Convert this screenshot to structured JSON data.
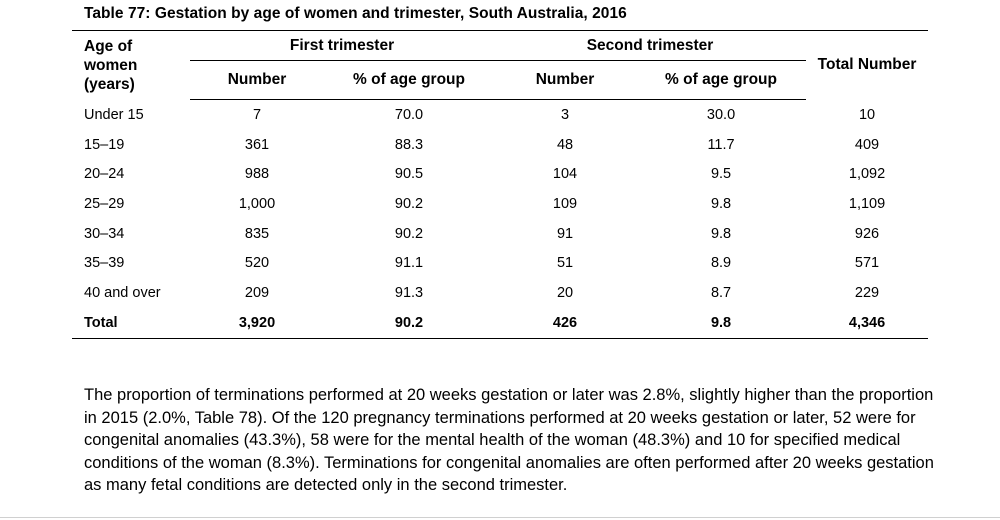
{
  "caption": "Table 77: Gestation by age of women and trimester, South Australia, 2016",
  "table": {
    "age_header": [
      "Age of",
      "women",
      "(years)"
    ],
    "first_trimester": "First trimester",
    "second_trimester": "Second trimester",
    "number_label": "Number",
    "pct_label": "% of age group",
    "total_number_label": "Total Number",
    "rows": [
      {
        "age": "Under 15",
        "n1": "7",
        "p1": "70.0",
        "n2": "3",
        "p2": "30.0",
        "total": "10"
      },
      {
        "age": "15–19",
        "n1": "361",
        "p1": "88.3",
        "n2": "48",
        "p2": "11.7",
        "total": "409"
      },
      {
        "age": "20–24",
        "n1": "988",
        "p1": "90.5",
        "n2": "104",
        "p2": "9.5",
        "total": "1,092"
      },
      {
        "age": "25–29",
        "n1": "1,000",
        "p1": "90.2",
        "n2": "109",
        "p2": "9.8",
        "total": "1,109"
      },
      {
        "age": "30–34",
        "n1": "835",
        "p1": "90.2",
        "n2": "91",
        "p2": "9.8",
        "total": "926"
      },
      {
        "age": "35–39",
        "n1": "520",
        "p1": "91.1",
        "n2": "51",
        "p2": "8.9",
        "total": "571"
      },
      {
        "age": "40 and over",
        "n1": "209",
        "p1": "91.3",
        "n2": "20",
        "p2": "8.7",
        "total": "229"
      }
    ],
    "total_row": {
      "age": "Total",
      "n1": "3,920",
      "p1": "90.2",
      "n2": "426",
      "p2": "9.8",
      "total": "4,346"
    }
  },
  "paragraph": "The proportion of terminations performed at 20 weeks gestation or later was 2.8%, slightly higher than the proportion in 2015 (2.0%, Table 78).  Of the 120 pregnancy terminations performed at 20 weeks gestation or later, 52 were for congenital anomalies (43.3%), 58 were for the mental health of the woman (48.3%)  and 10 for specified medical conditions of the woman (8.3%).  Terminations for congenital anomalies are often performed after 20 weeks gestation as many fetal conditions are detected only in the second trimester."
}
